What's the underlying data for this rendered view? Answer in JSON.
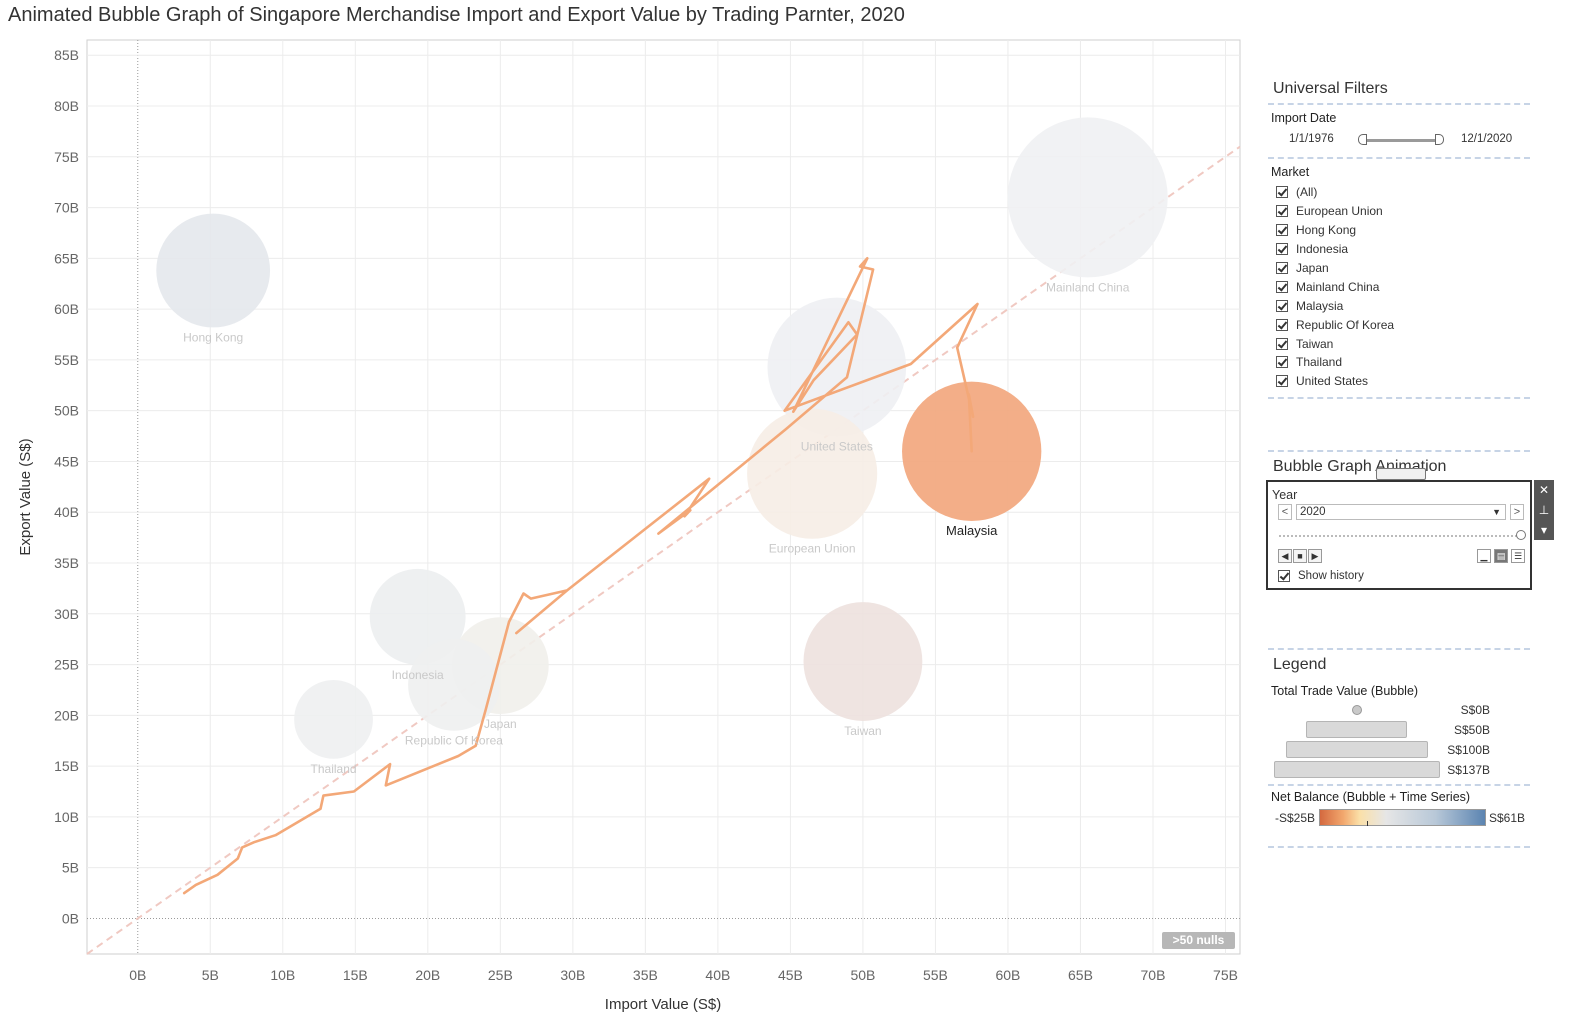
{
  "title": "Animated Bubble Graph of Singapore Merchandise Import and Export Value by Trading Parnter, 2020",
  "chart_data": {
    "type": "scatter",
    "title": "Animated Bubble Graph of Singapore Merchandise Import and Export Value by Trading Parnter, 2020",
    "xlabel": "Import Value (S$)",
    "ylabel": "Export Value (S$)",
    "xlim": [
      -3.5,
      76
    ],
    "ylim": [
      -3.5,
      86.5
    ],
    "x_ticks": [
      0,
      5,
      10,
      15,
      20,
      25,
      30,
      35,
      40,
      45,
      50,
      55,
      60,
      65,
      70,
      75
    ],
    "x_tick_labels": [
      "0B",
      "5B",
      "10B",
      "15B",
      "20B",
      "25B",
      "30B",
      "35B",
      "40B",
      "45B",
      "50B",
      "55B",
      "60B",
      "65B",
      "70B",
      "75B"
    ],
    "y_ticks": [
      0,
      5,
      10,
      15,
      20,
      25,
      30,
      35,
      40,
      45,
      50,
      55,
      60,
      65,
      70,
      75,
      80,
      85
    ],
    "y_tick_labels": [
      "0B",
      "5B",
      "10B",
      "15B",
      "20B",
      "25B",
      "30B",
      "35B",
      "40B",
      "45B",
      "50B",
      "55B",
      "60B",
      "65B",
      "70B",
      "75B",
      "80B",
      "85B"
    ],
    "reference_line": "x = y",
    "units": "billions S$",
    "highlighted": "Malaysia",
    "bubbles": [
      {
        "name": "Mainland China",
        "import": 65.5,
        "export": 71.0,
        "total": 136.5,
        "color": "#eff1f3"
      },
      {
        "name": "Hong Kong",
        "import": 5.2,
        "export": 63.8,
        "total": 69.0,
        "color": "#e4e8ec"
      },
      {
        "name": "United States",
        "import": 48.2,
        "export": 54.3,
        "total": 102.5,
        "color": "#eef0f3"
      },
      {
        "name": "European Union",
        "import": 46.5,
        "export": 43.8,
        "total": 90.3,
        "color": "#f6ede6"
      },
      {
        "name": "Malaysia",
        "import": 57.5,
        "export": 46.0,
        "total": 103.5,
        "color": "#f2aa82"
      },
      {
        "name": "Taiwan",
        "import": 50.0,
        "export": 25.3,
        "total": 75.3,
        "color": "#ede1de"
      },
      {
        "name": "Indonesia",
        "import": 19.3,
        "export": 29.7,
        "total": 49.0,
        "color": "#eceef0"
      },
      {
        "name": "Japan",
        "import": 25.0,
        "export": 24.9,
        "total": 49.9,
        "color": "#f1efeb"
      },
      {
        "name": "Republic Of Korea",
        "import": 21.8,
        "export": 23.0,
        "total": 44.8,
        "color": "#eef0ef"
      },
      {
        "name": "Thailand",
        "import": 13.5,
        "export": 19.6,
        "total": 33.1,
        "color": "#eeeff1"
      }
    ],
    "history_series": {
      "name": "Malaysia",
      "import": [
        3.2,
        4.0,
        5.5,
        6.9,
        7.2,
        8.0,
        9.5,
        12.6,
        12.8,
        14.9,
        17.4,
        17.1,
        22.1,
        23.3,
        24.0,
        25.6,
        26.6,
        27.1,
        29.6,
        26.1,
        29.6,
        39.4,
        37.7,
        38.1,
        35.9,
        44.7,
        48.9,
        50.7,
        49.8,
        50.3,
        45.2,
        46.6,
        49.6,
        49.0,
        44.6,
        53.3,
        57.9,
        56.5,
        57.6,
        57.3,
        57.5
      ],
      "export": [
        2.5,
        3.3,
        4.3,
        5.9,
        7.0,
        7.5,
        8.2,
        10.8,
        12.1,
        12.5,
        15.2,
        13.1,
        16.0,
        17.0,
        20.6,
        29.2,
        32.0,
        31.5,
        32.3,
        28.1,
        32.3,
        43.3,
        39.6,
        40.2,
        37.9,
        48.2,
        53.3,
        63.9,
        64.2,
        65.0,
        49.9,
        53.0,
        57.5,
        58.7,
        50.0,
        54.6,
        60.5,
        56.2,
        49.4,
        51.6,
        46.0
      ]
    }
  },
  "badge": ">50 nulls",
  "filters": {
    "heading": "Universal Filters",
    "import_date_label": "Import Date",
    "date_start": "1/1/1976",
    "date_end": "12/1/2020",
    "market_label": "Market",
    "markets": [
      "(All)",
      "European Union",
      "Hong Kong",
      "Indonesia",
      "Japan",
      "Mainland China",
      "Malaysia",
      "Republic Of Korea",
      "Taiwan",
      "Thailand",
      "United States"
    ]
  },
  "animation": {
    "heading": "Bubble Graph Animation",
    "year_label": "Year",
    "year_value": "2020",
    "show_history_label": "Show history",
    "prev": "<",
    "next": ">",
    "close": "✕",
    "pin": "⊥",
    "more": "▾"
  },
  "legend": {
    "heading": "Legend",
    "size_title": "Total Trade Value (Bubble)",
    "size_labels": [
      "S$0B",
      "S$50B",
      "S$100B",
      "S$137B"
    ],
    "color_title": "Net Balance (Bubble + Time Series)",
    "color_min": "-S$25B",
    "color_max": "S$61B"
  }
}
